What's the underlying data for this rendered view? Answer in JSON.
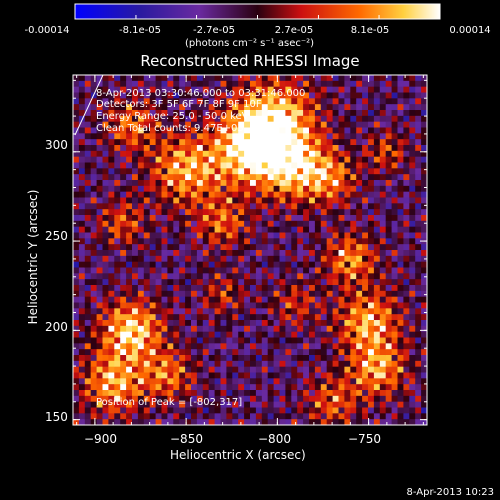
{
  "colorbar": {
    "tick_labels": [
      "-0.00014",
      "-8.1e-05",
      "-2.7e-05",
      "2.7e-05",
      "8.1e-05",
      "0.00014"
    ],
    "unit": "(photons cm⁻² s⁻¹ asec⁻²)"
  },
  "header": {
    "title": "Reconstructed RHESSI Image"
  },
  "info": {
    "time": "8-Apr-2013 03:30:46.000 to 03:31:46.000",
    "detectors": "Detectors: 3F 5F 6F 7F 8F 9F 10F",
    "energy": "Energy Range: 25.0 - 50.0 keV",
    "method": "Clean    Total counts: 9.47E+03",
    "peak": "Position of Peak = [-802,317]"
  },
  "footer": {
    "timestamp": "8-Apr-2013 10:23"
  },
  "chart_data": {
    "type": "heatmap",
    "title": "Reconstructed RHESSI Image",
    "xlabel": "Heliocentric X (arcsec)",
    "ylabel": "Heliocentric Y (arcsec)",
    "xlim": [
      -912,
      -718
    ],
    "ylim": [
      147,
      343
    ],
    "x_ticks": [
      -900,
      -850,
      -800,
      -750
    ],
    "y_ticks": [
      150,
      200,
      250,
      300
    ],
    "color_range": [
      -0.00014,
      0.00014
    ],
    "colormap": "blue-purple-red-yellow-white",
    "peak_position": [
      -802,
      317
    ]
  }
}
